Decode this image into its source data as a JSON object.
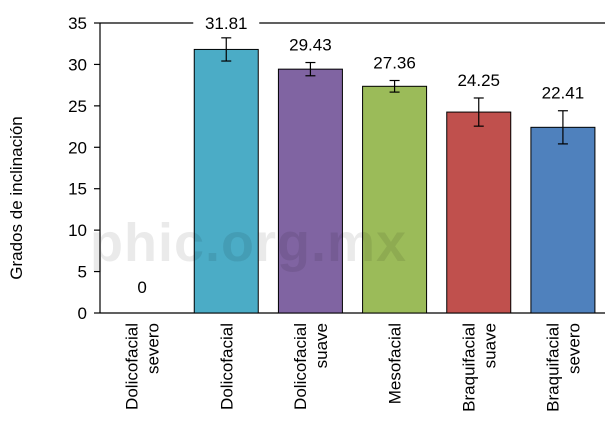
{
  "watermark": "phic.org.mx",
  "chart_data": {
    "type": "bar",
    "categories": [
      [
        "Dolicofacial",
        "severo"
      ],
      [
        "Dolicofacial"
      ],
      [
        "Dolicofacial",
        "suave"
      ],
      [
        "Mesofacial"
      ],
      [
        "Braquifacial",
        "suave"
      ],
      [
        "Braquifacial",
        "severo"
      ]
    ],
    "values": [
      0,
      31.81,
      29.43,
      27.36,
      24.25,
      22.41
    ],
    "value_labels": [
      "0",
      "31.81",
      "29.43",
      "27.36",
      "24.25",
      "22.41"
    ],
    "error": [
      0,
      1.4,
      0.8,
      0.7,
      1.7,
      2.0
    ],
    "colors": [
      "#ffffff",
      "#4bacc6",
      "#8064a2",
      "#9bbb59",
      "#c0504d",
      "#4f81bd"
    ],
    "ylabel": "Grados de inclinación",
    "xlabel": "",
    "ylim": [
      0,
      35
    ],
    "yticks": [
      0,
      5,
      10,
      15,
      20,
      25,
      30,
      35
    ],
    "grid": false
  }
}
